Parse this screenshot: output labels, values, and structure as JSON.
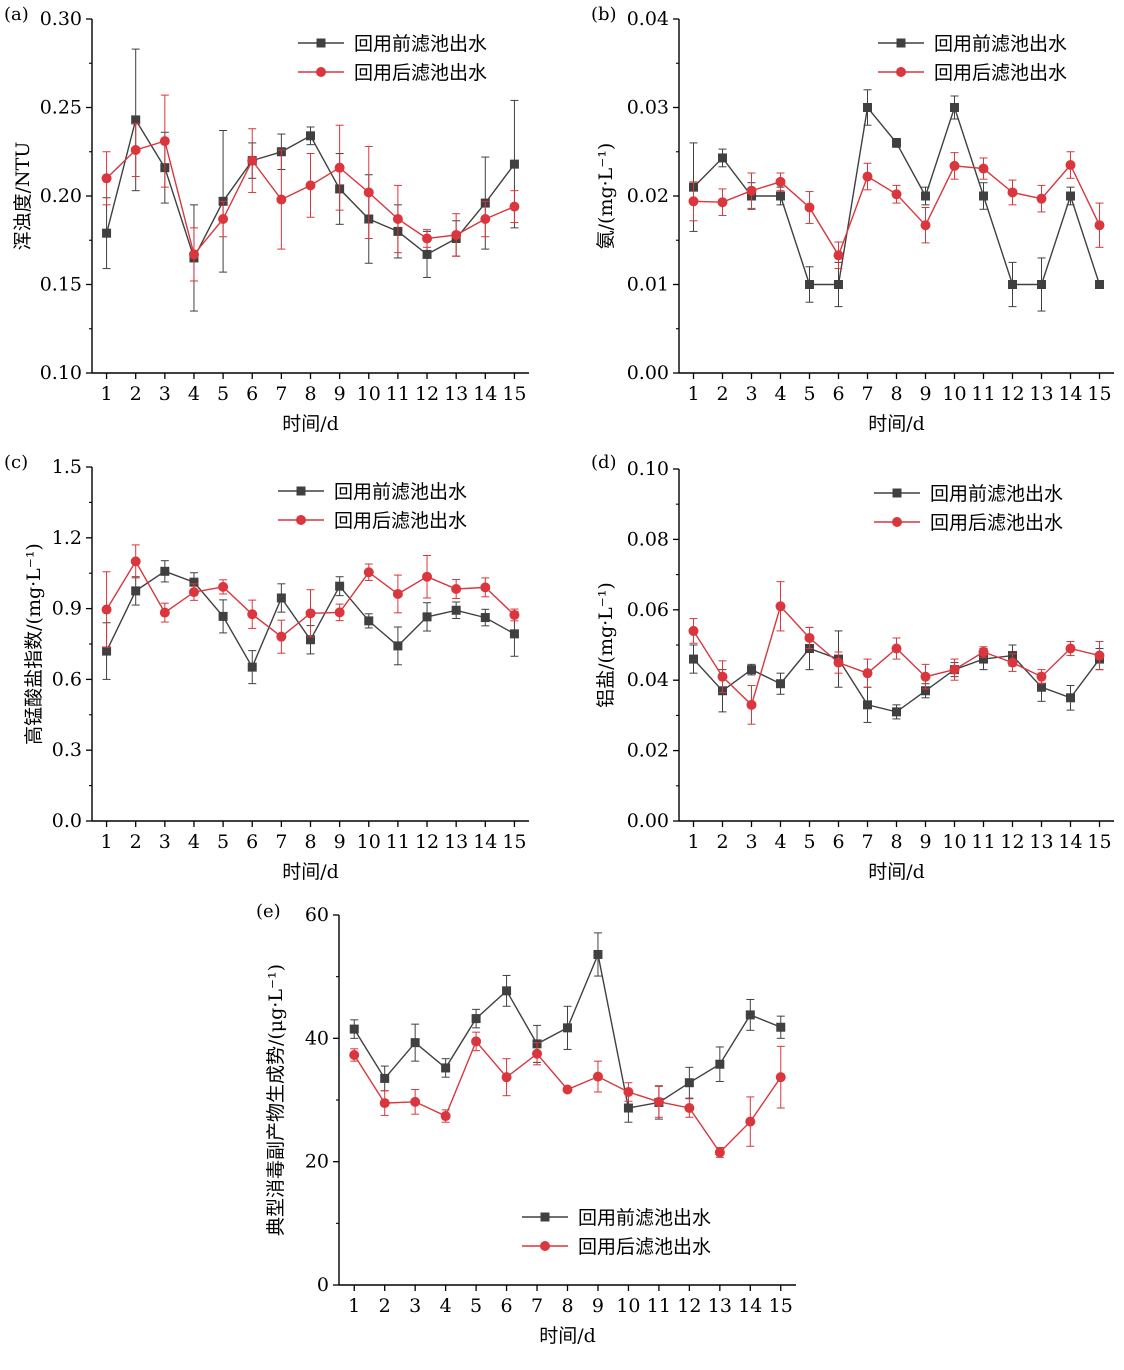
{
  "colors": {
    "before": "#404040",
    "after": "#d9363e",
    "axis": "#000000",
    "background": "#ffffff"
  },
  "legend": {
    "before": "回用前滤池出水",
    "after": "回用后滤池出水"
  },
  "chart_data": [
    {
      "type": "line",
      "panel": "(a)",
      "xlabel": "时间/d",
      "ylabel": "浑浊度/NTU",
      "ylim": [
        0.1,
        0.3
      ],
      "yticks": [
        "0.10",
        "0.15",
        "0.20",
        "0.25",
        "0.30"
      ],
      "categories": [
        "1",
        "2",
        "3",
        "4",
        "5",
        "6",
        "7",
        "8",
        "9",
        "10",
        "11",
        "12",
        "13",
        "14",
        "15"
      ],
      "legend_position": "top-right",
      "series": [
        {
          "name": "回用前滤池出水",
          "key": "before",
          "values": [
            0.179,
            0.243,
            0.216,
            0.165,
            0.197,
            0.22,
            0.225,
            0.234,
            0.204,
            0.187,
            0.18,
            0.167,
            0.176,
            0.196,
            0.218
          ],
          "errors": [
            0.02,
            0.04,
            0.02,
            0.03,
            0.04,
            0.01,
            0.01,
            0.005,
            0.02,
            0.025,
            0.015,
            0.013,
            0.01,
            0.026,
            0.036
          ]
        },
        {
          "name": "回用后滤池出水",
          "key": "after",
          "values": [
            0.21,
            0.226,
            0.231,
            0.167,
            0.187,
            0.22,
            0.198,
            0.206,
            0.216,
            0.202,
            0.187,
            0.176,
            0.178,
            0.187,
            0.194
          ],
          "errors": [
            0.015,
            0.015,
            0.026,
            0.015,
            0.01,
            0.018,
            0.028,
            0.018,
            0.024,
            0.026,
            0.019,
            0.005,
            0.012,
            0.01,
            0.009
          ]
        }
      ]
    },
    {
      "type": "line",
      "panel": "(b)",
      "xlabel": "时间/d",
      "ylabel": "氨/(mg·L⁻¹)",
      "ylim": [
        0.0,
        0.04
      ],
      "yticks": [
        "0.00",
        "0.01",
        "0.02",
        "0.03",
        "0.04"
      ],
      "categories": [
        "1",
        "2",
        "3",
        "4",
        "5",
        "6",
        "7",
        "8",
        "9",
        "10",
        "11",
        "12",
        "13",
        "14",
        "15"
      ],
      "legend_position": "top-right",
      "series": [
        {
          "name": "回用前滤池出水",
          "key": "before",
          "values": [
            0.021,
            0.0243,
            0.02,
            0.02,
            0.01,
            0.01,
            0.03,
            0.026,
            0.02,
            0.03,
            0.02,
            0.01,
            0.01,
            0.02,
            0.01
          ],
          "errors": [
            0.005,
            0.001,
            0.0015,
            0.001,
            0.002,
            0.0025,
            0.002,
            0.0005,
            0.001,
            0.0013,
            0.0015,
            0.0025,
            0.003,
            0.001,
            0.0003
          ]
        },
        {
          "name": "回用后滤池出水",
          "key": "after",
          "values": [
            0.0194,
            0.0193,
            0.0206,
            0.0216,
            0.0187,
            0.0133,
            0.0222,
            0.0202,
            0.0167,
            0.0234,
            0.0231,
            0.0204,
            0.0197,
            0.0235,
            0.0167
          ],
          "errors": [
            0.0022,
            0.0015,
            0.002,
            0.001,
            0.0018,
            0.0015,
            0.0015,
            0.001,
            0.002,
            0.0015,
            0.0012,
            0.0014,
            0.0015,
            0.0015,
            0.0025
          ]
        }
      ]
    },
    {
      "type": "line",
      "panel": "(c)",
      "xlabel": "时间/d",
      "ylabel": "高锰酸盐指数/(mg·L⁻¹)",
      "ylim": [
        0.0,
        1.5
      ],
      "yticks": [
        "0.0",
        "0.3",
        "0.6",
        "0.9",
        "1.2",
        "1.5"
      ],
      "categories": [
        "1",
        "2",
        "3",
        "4",
        "5",
        "6",
        "7",
        "8",
        "9",
        "10",
        "11",
        "12",
        "13",
        "14",
        "15"
      ],
      "legend_position": "top-right",
      "series": [
        {
          "name": "回用前滤池出水",
          "key": "before",
          "values": [
            0.72,
            0.975,
            1.058,
            1.012,
            0.867,
            0.652,
            0.945,
            0.768,
            0.995,
            0.848,
            0.742,
            0.865,
            0.893,
            0.862,
            0.793
          ],
          "errors": [
            0.12,
            0.06,
            0.045,
            0.04,
            0.07,
            0.07,
            0.06,
            0.06,
            0.04,
            0.03,
            0.08,
            0.06,
            0.035,
            0.035,
            0.095
          ]
        },
        {
          "name": "回用后滤池出水",
          "key": "after",
          "values": [
            0.896,
            1.1,
            0.883,
            0.97,
            0.992,
            0.876,
            0.781,
            0.88,
            0.884,
            1.054,
            0.962,
            1.035,
            0.983,
            0.99,
            0.873
          ],
          "errors": [
            0.16,
            0.07,
            0.04,
            0.035,
            0.03,
            0.06,
            0.07,
            0.1,
            0.035,
            0.035,
            0.08,
            0.09,
            0.04,
            0.04,
            0.025
          ]
        }
      ]
    },
    {
      "type": "line",
      "panel": "(d)",
      "xlabel": "时间/d",
      "ylabel": "铝盐/(mg·L⁻¹)",
      "ylim": [
        0.0,
        0.1
      ],
      "yticks": [
        "0.00",
        "0.02",
        "0.04",
        "0.06",
        "0.08",
        "0.10"
      ],
      "categories": [
        "1",
        "2",
        "3",
        "4",
        "5",
        "6",
        "7",
        "8",
        "9",
        "10",
        "11",
        "12",
        "13",
        "14",
        "15"
      ],
      "legend_position": "top-right",
      "series": [
        {
          "name": "回用前滤池出水",
          "key": "before",
          "values": [
            0.046,
            0.037,
            0.043,
            0.039,
            0.049,
            0.046,
            0.033,
            0.031,
            0.037,
            0.043,
            0.046,
            0.047,
            0.038,
            0.035,
            0.046
          ],
          "errors": [
            0.004,
            0.006,
            0.0015,
            0.003,
            0.006,
            0.008,
            0.005,
            0.002,
            0.002,
            0.002,
            0.003,
            0.003,
            0.004,
            0.0035,
            0.003
          ]
        },
        {
          "name": "回用后滤池出水",
          "key": "after",
          "values": [
            0.054,
            0.041,
            0.033,
            0.061,
            0.052,
            0.045,
            0.042,
            0.049,
            0.041,
            0.043,
            0.048,
            0.045,
            0.041,
            0.049,
            0.047
          ],
          "errors": [
            0.0035,
            0.0045,
            0.0055,
            0.007,
            0.003,
            0.003,
            0.004,
            0.003,
            0.0035,
            0.003,
            0.0015,
            0.0025,
            0.002,
            0.002,
            0.004
          ]
        }
      ]
    },
    {
      "type": "line",
      "panel": "(e)",
      "xlabel": "时间/d",
      "ylabel": "典型消毒副产物生成势/(μg·L⁻¹)",
      "ylim": [
        0,
        60
      ],
      "yticks": [
        "0",
        "20",
        "40",
        "60"
      ],
      "categories": [
        "1",
        "2",
        "3",
        "4",
        "5",
        "6",
        "7",
        "8",
        "9",
        "10",
        "11",
        "12",
        "13",
        "14",
        "15"
      ],
      "legend_position": "bottom-right",
      "series": [
        {
          "name": "回用前滤池出水",
          "key": "before",
          "values": [
            41.5,
            33.5,
            39.3,
            35.2,
            43.2,
            47.7,
            39.1,
            41.7,
            53.6,
            28.7,
            29.6,
            32.8,
            35.8,
            43.8,
            41.8
          ],
          "errors": [
            1.5,
            2.0,
            3.0,
            1.5,
            1.5,
            2.5,
            3.0,
            3.5,
            3.5,
            2.3,
            2.7,
            2.5,
            2.8,
            2.5,
            1.8
          ]
        },
        {
          "name": "回用后滤池出水",
          "key": "after",
          "values": [
            37.3,
            29.5,
            29.7,
            27.4,
            39.5,
            33.7,
            37.5,
            31.7,
            33.8,
            31.3,
            29.7,
            28.7,
            21.5,
            26.5,
            33.7
          ],
          "errors": [
            1.0,
            2.0,
            2.0,
            1.0,
            1.5,
            3.0,
            1.8,
            0.0,
            2.5,
            1.5,
            2.5,
            1.5,
            0.8,
            4.0,
            5.0
          ]
        }
      ]
    }
  ]
}
